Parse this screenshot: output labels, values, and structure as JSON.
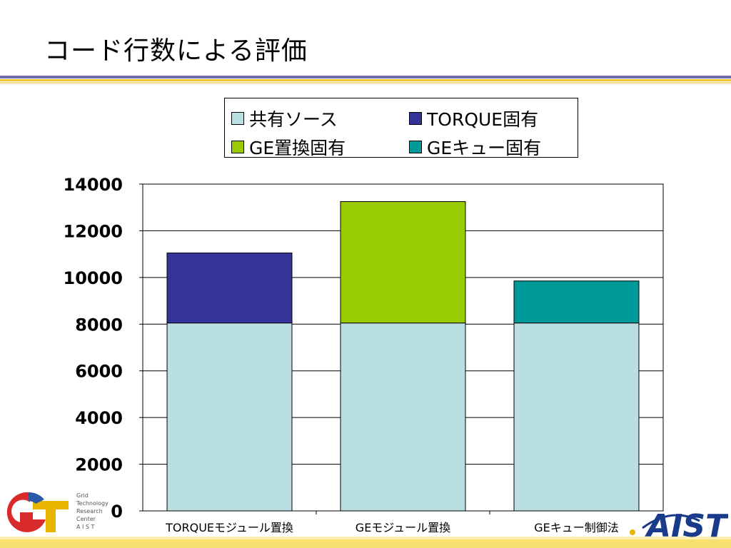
{
  "slide": {
    "title": "コード行数による評価"
  },
  "logos": {
    "gtrc": {
      "lines": [
        "Grid",
        "Technology",
        "Research",
        "Center",
        "A I S T"
      ]
    },
    "aist": {
      "text": "AIST"
    }
  },
  "colors": {
    "shared": "#b9dfe3",
    "torque": "#333399",
    "ge_replace": "#99cc00",
    "ge_queue": "#009999"
  },
  "chart_data": {
    "type": "bar",
    "stacked": true,
    "categories": [
      "TORQUEモジュール置換",
      "GEモジュール置換",
      "GEキュー制御法"
    ],
    "series": [
      {
        "name": "共有ソース",
        "values": [
          8050,
          8050,
          8050
        ],
        "color": "#b9dfe3"
      },
      {
        "name": "TORQUE固有",
        "values": [
          3000,
          0,
          0
        ],
        "color": "#333399"
      },
      {
        "name": "GE置換固有",
        "values": [
          0,
          5200,
          0
        ],
        "color": "#99cc00"
      },
      {
        "name": "GEキュー固有",
        "values": [
          0,
          0,
          1800
        ],
        "color": "#009999"
      }
    ],
    "ylim": [
      0,
      14000
    ],
    "yticks": [
      "0",
      "2000",
      "4000",
      "6000",
      "8000",
      "10000",
      "12000",
      "14000"
    ],
    "grid": true,
    "legend_position": "top"
  }
}
